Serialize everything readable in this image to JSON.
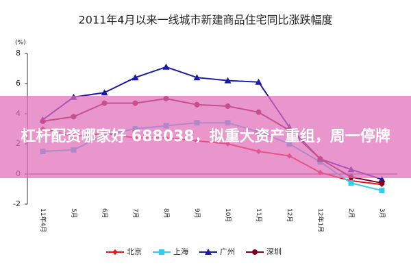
{
  "chart_data": {
    "type": "line",
    "title": "2011年4月以来一线城市新建商品住宅同比涨跌幅度",
    "y_label": "(%)",
    "annotation": "杠杆配资哪家好 688038，拟重大资产重组，周一停牌",
    "categories": [
      "11年4月",
      "5月",
      "6月",
      "7月",
      "8月",
      "9月",
      "10月",
      "11月",
      "12月",
      "12年1月",
      "2月",
      "3月"
    ],
    "series": [
      {
        "name": "北京",
        "color": "#e8141a",
        "marker": "diamond",
        "values": [
          3.0,
          2.5,
          2.7,
          2.4,
          2.4,
          2.2,
          2.0,
          1.5,
          1.2,
          0.1,
          -0.45,
          -0.7
        ]
      },
      {
        "name": "上海",
        "color": "#33ccee",
        "marker": "square",
        "values": [
          1.5,
          1.6,
          2.6,
          3.0,
          3.2,
          3.4,
          3.4,
          2.8,
          2.0,
          0.8,
          -0.6,
          -1.1
        ]
      },
      {
        "name": "广州",
        "color": "#1a1aa8",
        "marker": "triangle",
        "values": [
          3.6,
          5.1,
          5.4,
          6.4,
          7.1,
          6.4,
          6.2,
          6.1,
          3.1,
          1.0,
          0.3,
          -0.35
        ]
      },
      {
        "name": "深圳",
        "color": "#800020",
        "marker": "circle",
        "values": [
          3.5,
          3.8,
          4.7,
          4.7,
          5.0,
          4.6,
          4.5,
          4.1,
          2.9,
          1.0,
          -0.2,
          -0.6
        ]
      }
    ],
    "ylim": [
      -2,
      8
    ],
    "yticks": [
      -2,
      0,
      2,
      4,
      6,
      8
    ],
    "grid": false
  }
}
